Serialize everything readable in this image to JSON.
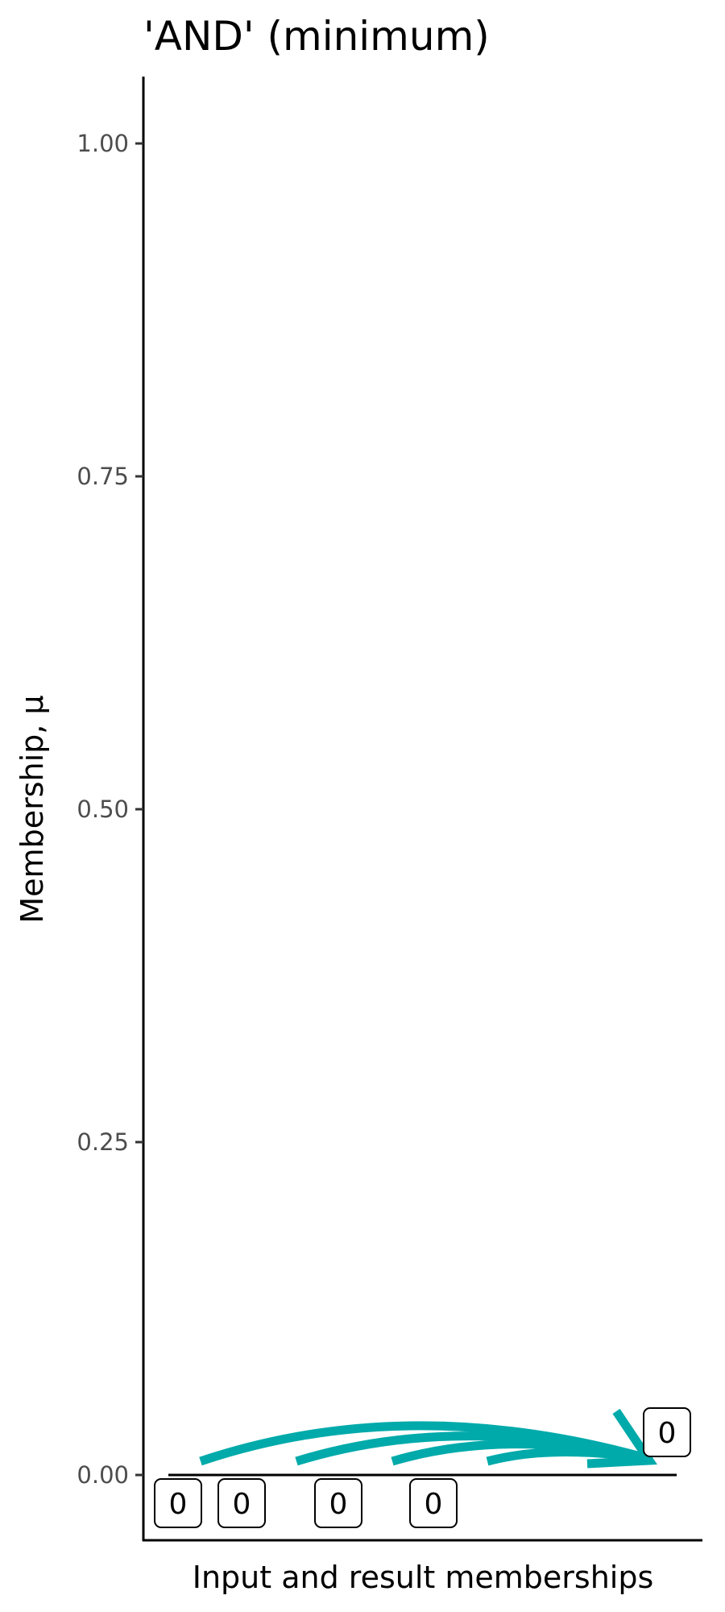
{
  "chart_data": {
    "type": "line",
    "title": "'AND' (minimum)",
    "xlabel": "Input and result memberships",
    "ylabel": "Membership, μ",
    "ylim": [
      -0.05,
      1.05
    ],
    "yticks": [
      0.0,
      0.25,
      0.5,
      0.75,
      1.0
    ],
    "ytick_labels": [
      "0.00",
      "0.25",
      "0.50",
      "0.75",
      "1.00"
    ],
    "inputs": [
      {
        "value": 0,
        "label": "0"
      },
      {
        "value": 0,
        "label": "0"
      },
      {
        "value": 0,
        "label": "0"
      },
      {
        "value": 0,
        "label": "0"
      }
    ],
    "result": {
      "value": 0,
      "label": "0"
    },
    "arrow_color": "#00AAAA",
    "grid": false
  }
}
